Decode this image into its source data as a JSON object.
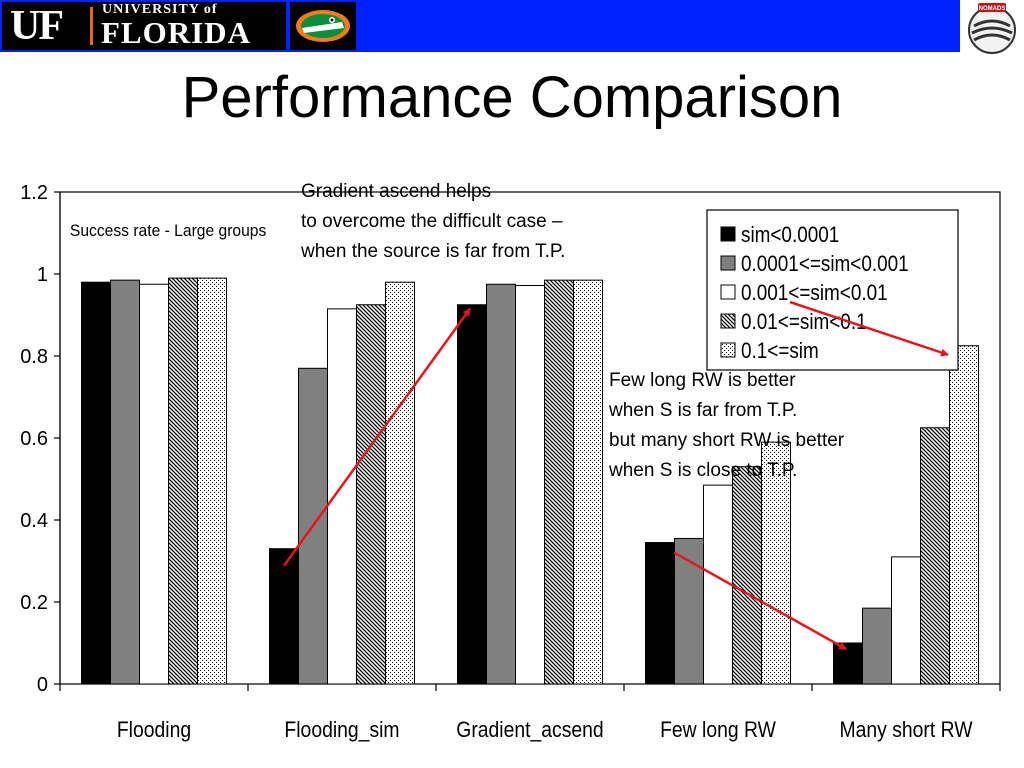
{
  "header": {
    "logo_uf": "UF",
    "logo_university": "UNIVERSITY of",
    "logo_florida": "FLORIDA",
    "banner_color": "#0021ff",
    "nomads_label": "NOMADS"
  },
  "slide": {
    "title": "Performance Comparison"
  },
  "annotations": {
    "gradient": [
      "Gradient ascend helps",
      "to overcome the difficult case –",
      "when the source is far from T.P."
    ],
    "rw": [
      "Few long RW is better",
      "when S is far from T.P.",
      "but many short RW is better",
      "when S is close to T.P."
    ],
    "arrow_color": "#e8141b"
  },
  "chart_data": {
    "type": "bar",
    "title": "Success rate - Large groups",
    "xlabel": "",
    "ylabel": "",
    "categories": [
      "Flooding",
      "Flooding_sim",
      "Gradient_acsend",
      "Few long RW",
      "Many short RW"
    ],
    "ylim": [
      0,
      1.2
    ],
    "yticks": [
      "0",
      "0.2",
      "0.4",
      "0.6",
      "0.8",
      "1",
      "1.2"
    ],
    "legend_position": "top-right",
    "gridlines": false,
    "series": [
      {
        "name": "sim<0.0001",
        "fill": "solid-black",
        "values": [
          0.98,
          0.33,
          0.925,
          0.345,
          0.1
        ]
      },
      {
        "name": "0.0001<=sim<0.001",
        "fill": "solid-gray",
        "values": [
          0.985,
          0.77,
          0.975,
          0.355,
          0.185
        ]
      },
      {
        "name": "0.001<=sim<0.01",
        "fill": "white",
        "values": [
          0.975,
          0.915,
          0.972,
          0.485,
          0.31
        ]
      },
      {
        "name": "0.01<=sim<0.1",
        "fill": "diagonal-hatch",
        "values": [
          0.99,
          0.925,
          0.985,
          0.53,
          0.625
        ]
      },
      {
        "name": "0.1<=sim",
        "fill": "dotted",
        "values": [
          0.99,
          0.98,
          0.985,
          0.59,
          0.825
        ]
      }
    ]
  }
}
